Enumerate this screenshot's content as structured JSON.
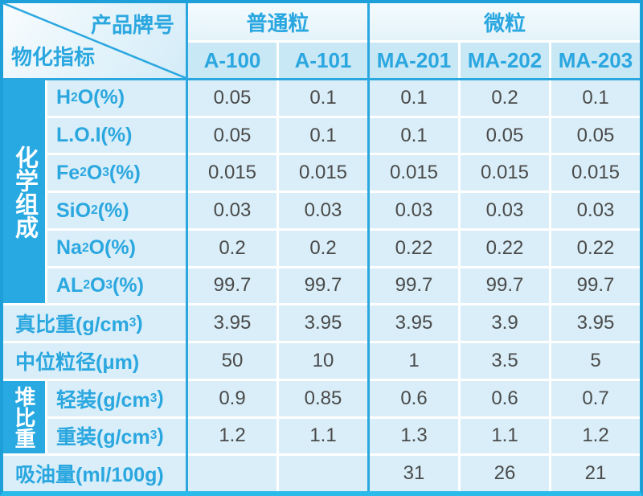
{
  "colors": {
    "border_blue": "#1d9fda",
    "bottom_bar_cyan": "#2abbea",
    "strip_blue": "#29a9e1",
    "header_text_blue": "#2ba7e0",
    "cell_bg": "#d9eef8",
    "col_header_bg": "#c9e8f6",
    "group_header_bg": "#eef7fc",
    "value_text": "#4a4a4a"
  },
  "header": {
    "corner_top": "产品牌号",
    "corner_bottom": "物化指标",
    "groups": [
      {
        "label": "普通粒",
        "columns": [
          "A-100",
          "A-101"
        ]
      },
      {
        "label": "微粒",
        "columns": [
          "MA-201",
          "MA-202",
          "MA-203"
        ]
      }
    ]
  },
  "row_groups": [
    {
      "label": "化学组成"
    },
    {
      "label": "堆比重"
    }
  ],
  "rows": [
    {
      "label_html": "H<sub>2</sub>O(%)",
      "values": [
        "0.05",
        "0.1",
        "0.1",
        "0.2",
        "0.1"
      ]
    },
    {
      "label_html": "L.O.I(%)",
      "values": [
        "0.05",
        "0.1",
        "0.1",
        "0.05",
        "0.05"
      ]
    },
    {
      "label_html": "Fe<sub>2</sub>O<sub>3</sub>(%)",
      "values": [
        "0.015",
        "0.015",
        "0.015",
        "0.015",
        "0.015"
      ]
    },
    {
      "label_html": "SiO<sub>2</sub>(%)",
      "values": [
        "0.03",
        "0.03",
        "0.03",
        "0.03",
        "0.03"
      ]
    },
    {
      "label_html": "Na<sub>2</sub>O(%)",
      "values": [
        "0.2",
        "0.2",
        "0.22",
        "0.22",
        "0.22"
      ]
    },
    {
      "label_html": "AL<sub>2</sub>O<sub>3</sub>(%)",
      "values": [
        "99.7",
        "99.7",
        "99.7",
        "99.7",
        "99.7"
      ]
    },
    {
      "label_html": "真比重(g/cm<sup>3</sup>)",
      "values": [
        "3.95",
        "3.95",
        "3.95",
        "3.9",
        "3.95"
      ]
    },
    {
      "label_html": "中位粒径(μm)",
      "values": [
        "50",
        "10",
        "1",
        "3.5",
        "5"
      ]
    },
    {
      "label_html": "轻装(g/cm<sup>3</sup>)",
      "values": [
        "0.9",
        "0.85",
        "0.6",
        "0.6",
        "0.7"
      ]
    },
    {
      "label_html": "重装(g/cm<sup>3</sup>)",
      "values": [
        "1.2",
        "1.1",
        "1.3",
        "1.1",
        "1.2"
      ]
    },
    {
      "label_html": "吸油量(ml/100g)",
      "values": [
        "",
        "",
        "31",
        "26",
        "21"
      ]
    }
  ]
}
